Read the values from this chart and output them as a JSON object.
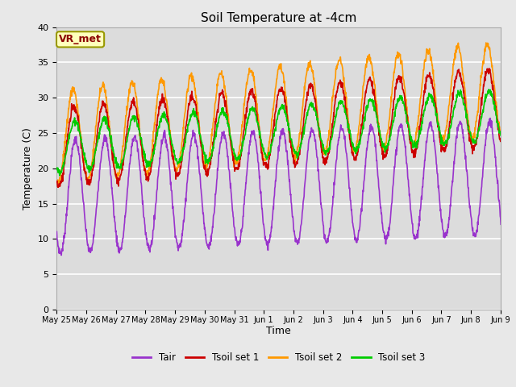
{
  "title": "Soil Temperature at -4cm",
  "xlabel": "Time",
  "ylabel": "Temperature (C)",
  "ylim": [
    0,
    40
  ],
  "yticks": [
    0,
    5,
    10,
    15,
    20,
    25,
    30,
    35,
    40
  ],
  "annotation": "VR_met",
  "fig_bg_color": "#e8e8e8",
  "plot_bg_color": "#dcdcdc",
  "line_colors": {
    "Tair": "#9933cc",
    "Tsoil_set1": "#cc0000",
    "Tsoil_set2": "#ff9900",
    "Tsoil_set3": "#00cc00"
  },
  "legend_labels": [
    "Tair",
    "Tsoil set 1",
    "Tsoil set 2",
    "Tsoil set 3"
  ],
  "x_tick_labels": [
    "May 25",
    "May 26",
    "May 27",
    "May 28",
    "May 29",
    "May 30",
    "May 31",
    "Jun 1",
    "Jun 2",
    "Jun 3",
    "Jun 4",
    "Jun 5",
    "Jun 6",
    "Jun 7",
    "Jun 8",
    "Jun 9"
  ],
  "num_days": 16,
  "points_per_day": 96
}
